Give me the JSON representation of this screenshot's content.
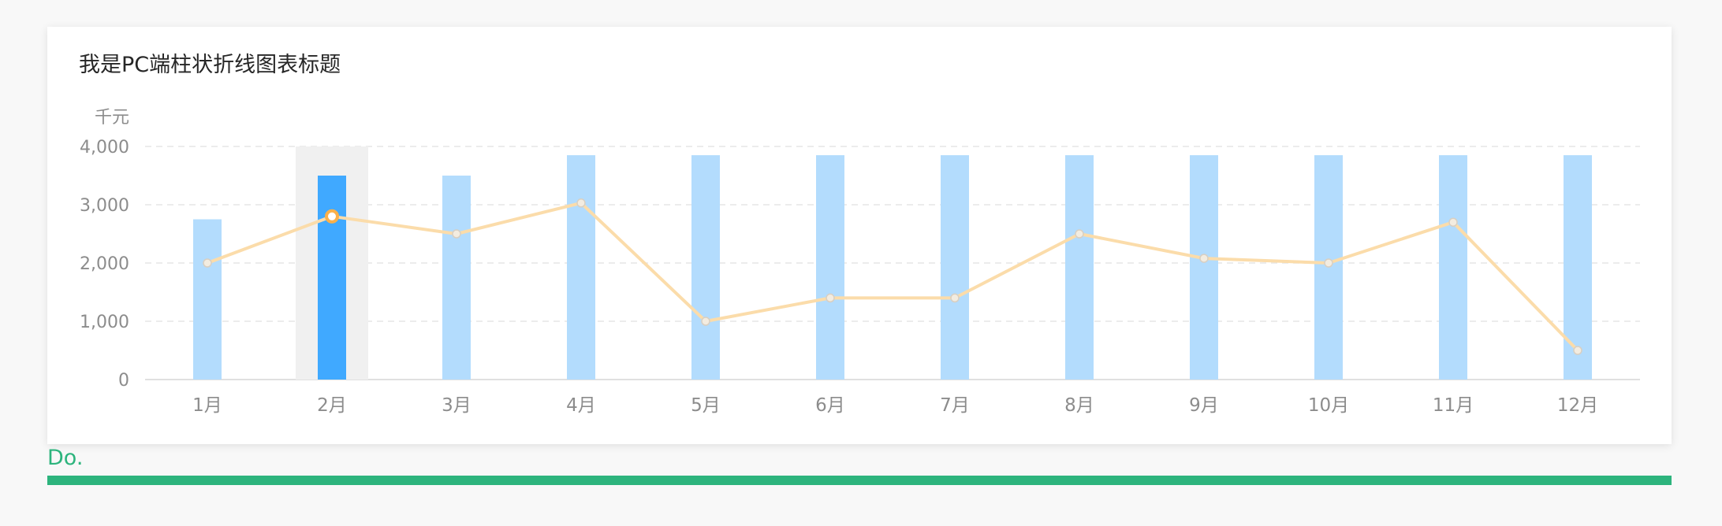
{
  "card": {
    "title": "我是PC端柱状折线图表标题"
  },
  "footer": {
    "label": "Do.",
    "color": "#2db47d"
  },
  "chart_data": {
    "type": "bar+line",
    "unit_label": "千元",
    "categories": [
      "1月",
      "2月",
      "3月",
      "4月",
      "5月",
      "6月",
      "7月",
      "8月",
      "9月",
      "10月",
      "11月",
      "12月"
    ],
    "series": [
      {
        "type": "bar",
        "values": [
          2750,
          3500,
          3500,
          3850,
          3850,
          3850,
          3850,
          3850,
          3850,
          3850,
          3850,
          3850
        ],
        "color": "#b3dcfd",
        "highlight_color": "#40a9ff"
      },
      {
        "type": "line",
        "values": [
          2000,
          2800,
          2500,
          3030,
          1000,
          1400,
          1400,
          2500,
          2080,
          2000,
          2700,
          500
        ],
        "color": "#fbdcaa"
      }
    ],
    "y_ticks": [
      "4,000",
      "3,000",
      "2,000",
      "1,000",
      "0"
    ],
    "ylim": [
      0,
      4000
    ],
    "grid": true,
    "highlighted_category": "2月"
  }
}
